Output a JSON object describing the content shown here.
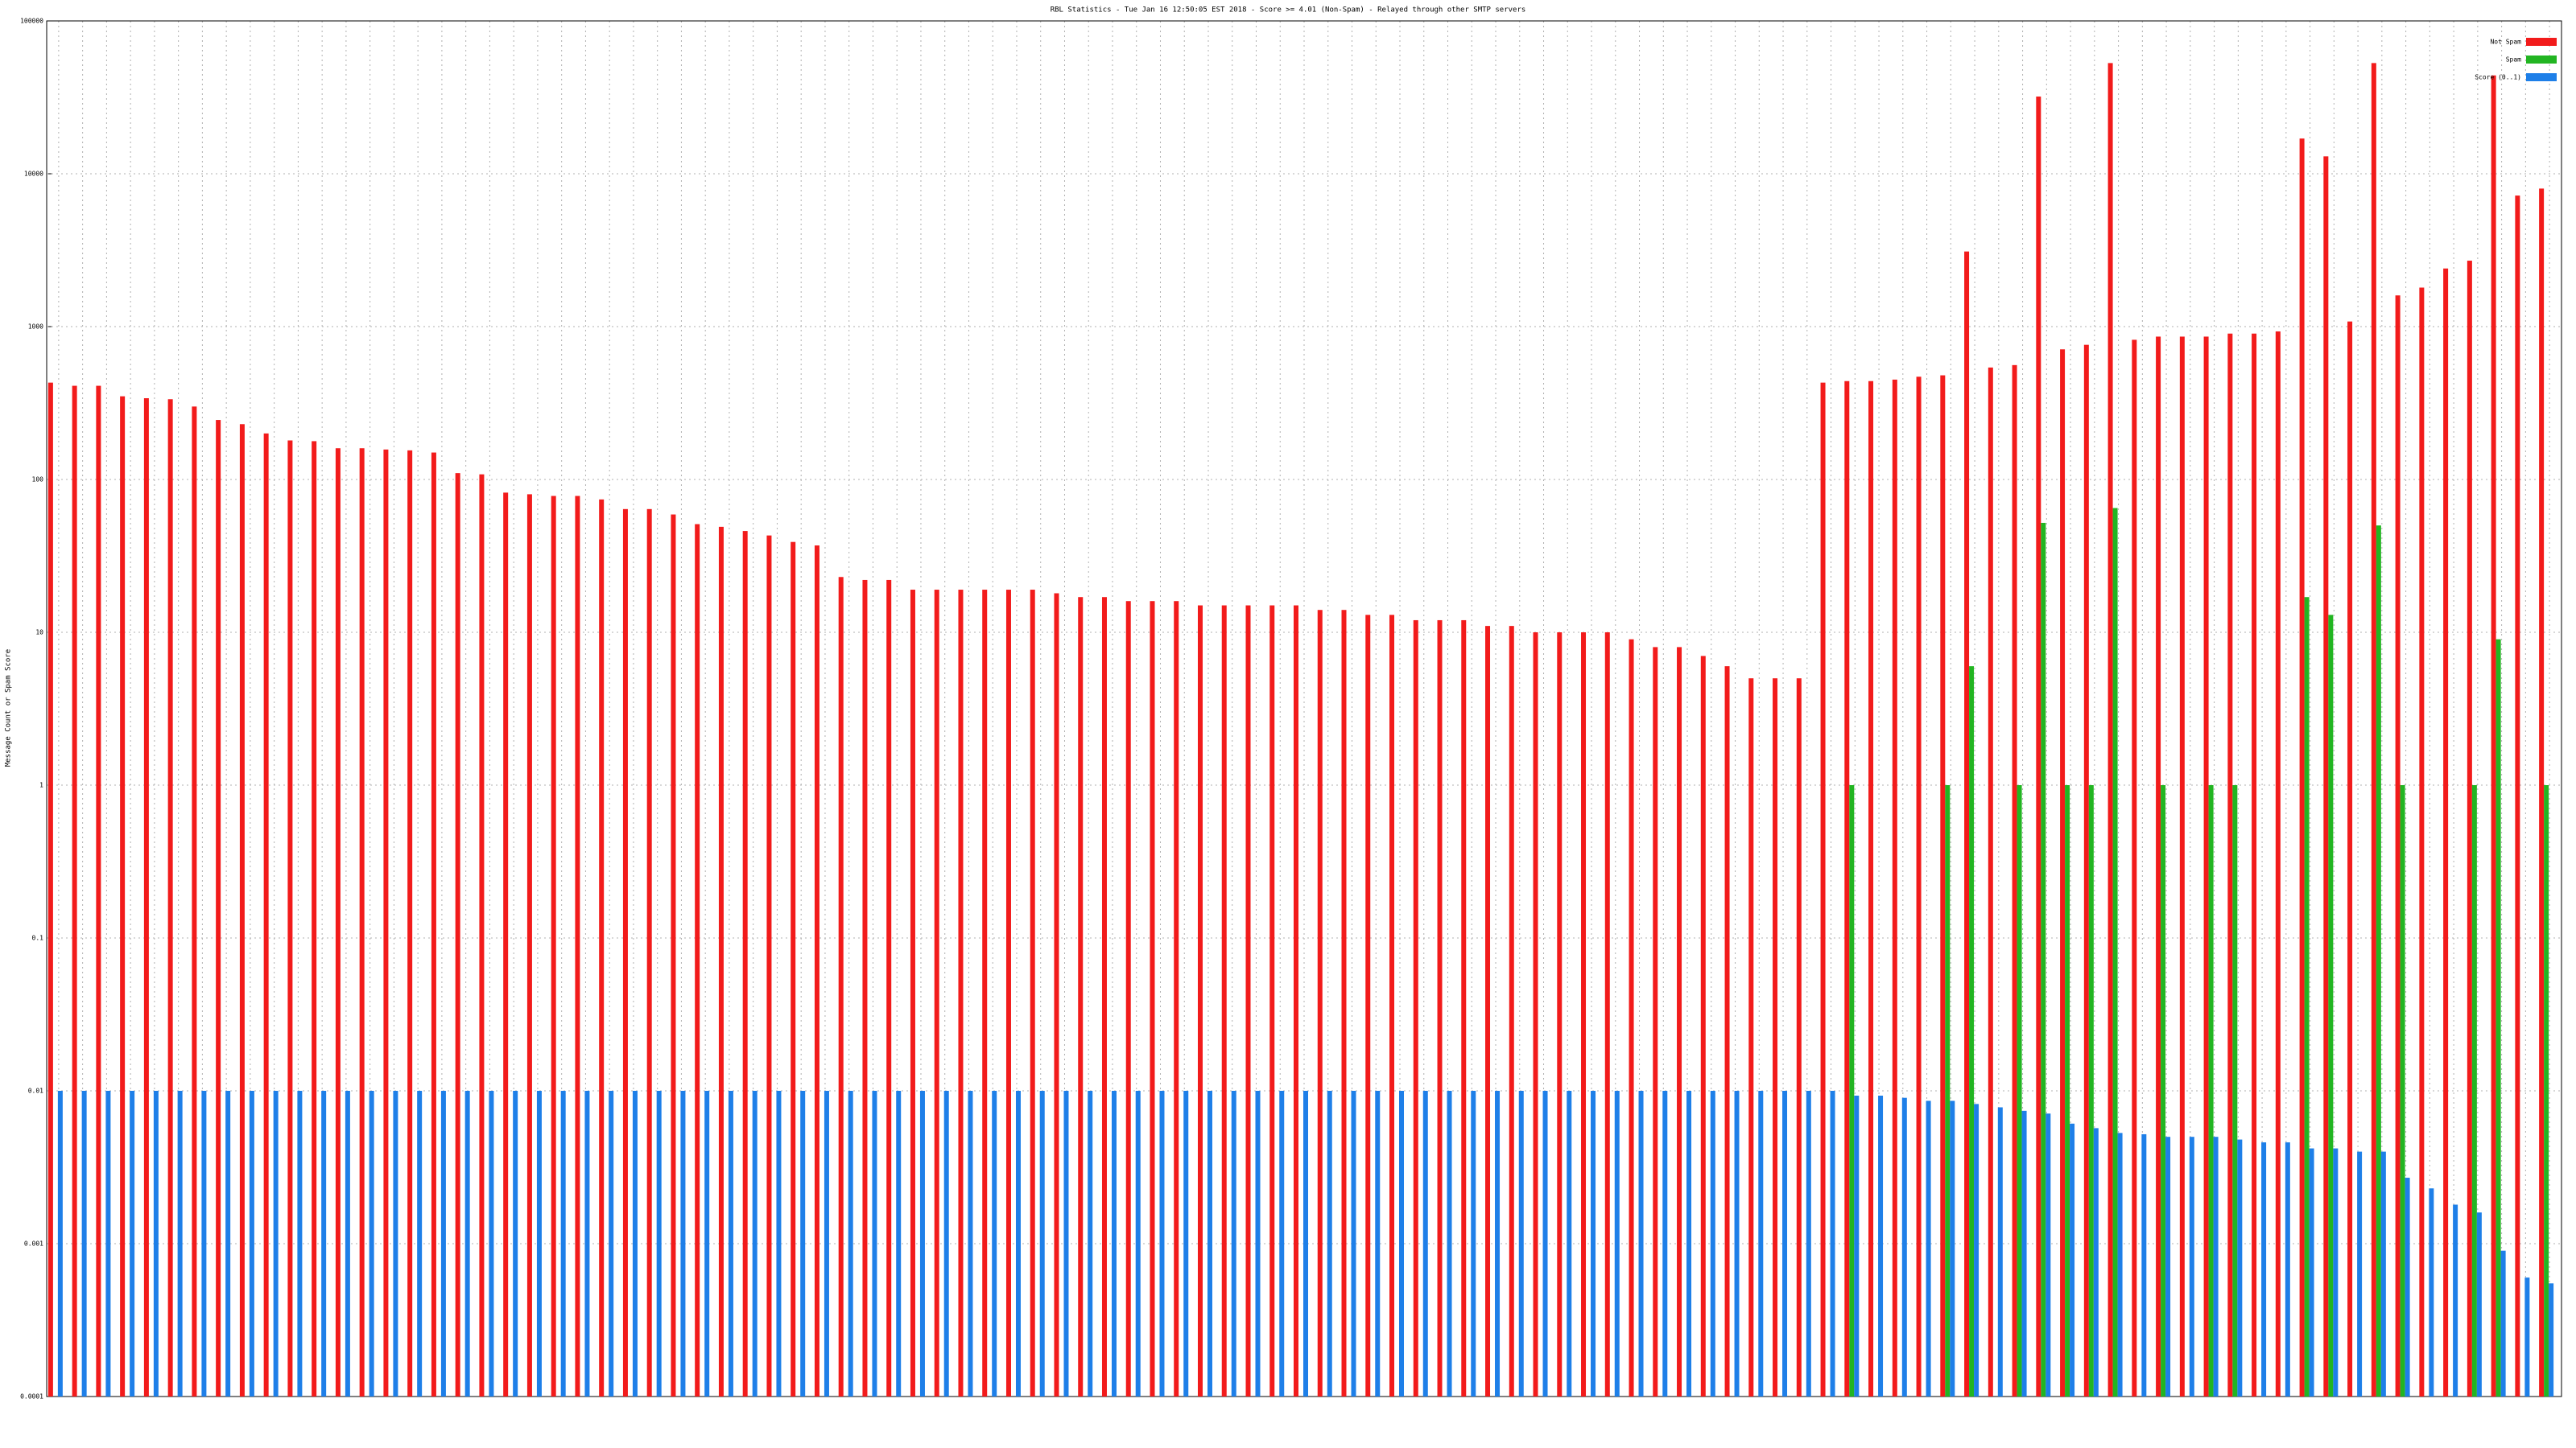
{
  "chart_data": {
    "type": "bar",
    "title": "RBL Statistics - Tue Jan 16 12:50:05 EST 2018 - Score >= 4.01 (Non-Spam) - Relayed through other SMTP servers",
    "y_label": "Message Count or Spam Score",
    "log_scale": true,
    "grid": true,
    "legend": "top-right",
    "ylim": [
      0.0001,
      100000
    ],
    "yticks": [
      0.0001,
      0.001,
      0.01,
      0.1,
      1,
      10,
      100,
      1000,
      10000,
      100000
    ],
    "categories": [
      null,
      null,
      null,
      null,
      null,
      null,
      null,
      null,
      null,
      null,
      null,
      null,
      null,
      null,
      null,
      null,
      null,
      null,
      null,
      null,
      null,
      null,
      null,
      null,
      null,
      null,
      null,
      null,
      null,
      null,
      null,
      null,
      null,
      null,
      null,
      null,
      null,
      null,
      null,
      null,
      null,
      null,
      null,
      null,
      null,
      null,
      null,
      null,
      null,
      null,
      null,
      null,
      null,
      null,
      null,
      null,
      null,
      null,
      null,
      null,
      null,
      null,
      null,
      null,
      null,
      null,
      null,
      null,
      null,
      null,
      null,
      null,
      null,
      null,
      null,
      null,
      null,
      null,
      null,
      null,
      null,
      null,
      null,
      null,
      null,
      null,
      null,
      null,
      null,
      null,
      null,
      null,
      null,
      null,
      null,
      null,
      null,
      null,
      null,
      null,
      null,
      null,
      null,
      null,
      null
    ],
    "series": [
      {
        "name": "Not Spam",
        "color": "#f21b1b",
        "values": [
          430,
          410,
          410,
          350,
          340,
          335,
          300,
          245,
          230,
          200,
          180,
          178,
          160,
          160,
          157,
          155,
          150,
          110,
          108,
          82,
          80,
          78,
          78,
          74,
          64,
          64,
          59,
          51,
          49,
          46,
          43,
          39,
          37,
          23,
          22,
          22,
          19,
          19,
          19,
          19,
          19,
          19,
          18,
          17,
          17,
          16,
          16,
          16,
          15,
          15,
          15,
          15,
          15,
          14,
          14,
          13,
          13,
          12,
          12,
          12,
          11,
          11,
          10,
          10,
          10,
          10,
          9,
          8,
          8,
          7,
          6,
          5,
          5,
          5,
          430,
          440,
          440,
          450,
          470,
          480,
          3100,
          540,
          560,
          32000,
          710,
          760,
          53000,
          820,
          860,
          860,
          860,
          900,
          900,
          930,
          17000,
          13000,
          1080,
          53000,
          1600,
          1800,
          2400,
          2700,
          44000,
          7200,
          8000
        ]
      },
      {
        "name": "Spam",
        "color": "#22b522",
        "values": [
          null,
          null,
          null,
          null,
          null,
          null,
          null,
          null,
          null,
          null,
          null,
          null,
          null,
          null,
          null,
          null,
          null,
          null,
          null,
          null,
          null,
          null,
          null,
          null,
          null,
          null,
          null,
          null,
          null,
          null,
          null,
          null,
          null,
          null,
          null,
          null,
          null,
          null,
          null,
          null,
          null,
          null,
          null,
          null,
          null,
          null,
          null,
          null,
          null,
          null,
          null,
          null,
          null,
          null,
          null,
          null,
          null,
          null,
          null,
          null,
          null,
          null,
          null,
          null,
          null,
          null,
          null,
          null,
          null,
          null,
          null,
          null,
          null,
          null,
          null,
          1,
          null,
          null,
          null,
          1,
          6,
          null,
          1,
          52,
          1,
          1,
          65,
          null,
          1,
          null,
          1,
          1,
          null,
          null,
          17,
          13,
          null,
          50,
          1,
          null,
          null,
          1,
          9,
          null,
          1
        ]
      },
      {
        "name": "Score (0..1)",
        "color": "#1e7fe8",
        "values": [
          0.01,
          0.01,
          0.01,
          0.01,
          0.01,
          0.01,
          0.01,
          0.01,
          0.01,
          0.01,
          0.01,
          0.01,
          0.01,
          0.01,
          0.01,
          0.01,
          0.01,
          0.01,
          0.01,
          0.01,
          0.01,
          0.01,
          0.01,
          0.01,
          0.01,
          0.01,
          0.01,
          0.01,
          0.01,
          0.01,
          0.01,
          0.01,
          0.01,
          0.01,
          0.01,
          0.01,
          0.01,
          0.01,
          0.01,
          0.01,
          0.01,
          0.01,
          0.01,
          0.01,
          0.01,
          0.01,
          0.01,
          0.01,
          0.01,
          0.01,
          0.01,
          0.01,
          0.01,
          0.01,
          0.01,
          0.01,
          0.01,
          0.01,
          0.01,
          0.01,
          0.01,
          0.01,
          0.01,
          0.01,
          0.01,
          0.01,
          0.01,
          0.01,
          0.01,
          0.01,
          0.01,
          0.01,
          0.01,
          0.01,
          0.01,
          0.0093,
          0.0093,
          0.009,
          0.0086,
          0.0086,
          0.0082,
          0.0078,
          0.0074,
          0.0071,
          0.0061,
          0.0057,
          0.0053,
          0.0052,
          0.005,
          0.005,
          0.005,
          0.0048,
          0.0046,
          0.0046,
          0.0042,
          0.0042,
          0.004,
          0.004,
          0.0027,
          0.0023,
          0.0018,
          0.0016,
          0.0009,
          0.0006,
          0.00055
        ]
      }
    ]
  }
}
